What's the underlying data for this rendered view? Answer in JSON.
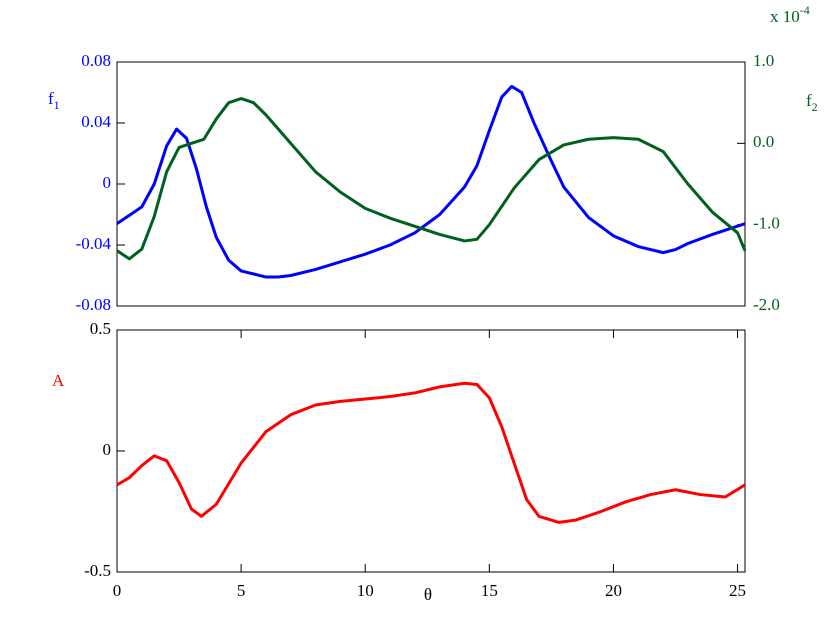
{
  "chart_data": [
    {
      "type": "line",
      "ylabel": "f",
      "ylabel_subscript": "1",
      "y2label": "f",
      "y2label_subscript": "2",
      "y2_multiplier": "x 10",
      "y2_multiplier_exponent": "-4",
      "xlim": [
        0,
        25.3
      ],
      "ylim": [
        -0.08,
        0.08
      ],
      "yticks": [
        0.08,
        0.04,
        0,
        -0.04,
        -0.08
      ],
      "y2lim": [
        -2,
        1
      ],
      "y2ticks": [
        {
          "value": 1,
          "label": "1.0"
        },
        {
          "value": 0,
          "label": "0.0"
        },
        {
          "value": -1,
          "label": "-1.0"
        },
        {
          "value": -2,
          "label": "-2.0"
        }
      ],
      "series": [
        {
          "color": "#0000ff",
          "x": [
            0,
            1,
            1.5,
            2,
            2.4,
            2.8,
            3.2,
            3.6,
            4,
            4.5,
            5,
            6,
            6.5,
            7,
            8,
            9,
            10,
            11,
            12,
            13,
            14,
            14.5,
            15,
            15.5,
            15.9,
            16.3,
            16.8,
            17.5,
            18,
            19,
            20,
            21,
            22,
            22.5,
            23,
            24,
            25.3
          ],
          "values": [
            -0.026,
            -0.015,
            0.0,
            0.025,
            0.036,
            0.03,
            0.01,
            -0.015,
            -0.035,
            -0.05,
            -0.057,
            -0.061,
            -0.061,
            -0.06,
            -0.056,
            -0.051,
            -0.046,
            -0.04,
            -0.032,
            -0.02,
            -0.002,
            0.012,
            0.035,
            0.057,
            0.064,
            0.06,
            0.04,
            0.015,
            -0.002,
            -0.022,
            -0.034,
            -0.041,
            -0.045,
            -0.043,
            -0.039,
            -0.033,
            -0.026
          ]
        },
        {
          "color": "#006020",
          "axis": "y2",
          "x": [
            0,
            0.5,
            1,
            1.5,
            2,
            2.5,
            3,
            3.5,
            4,
            4.5,
            5,
            5.5,
            6,
            7,
            8,
            9,
            10,
            11,
            12,
            13,
            14,
            14.5,
            15,
            16,
            17,
            18,
            19,
            20,
            21,
            22,
            23,
            24,
            25,
            25.3
          ],
          "values": [
            -1.32,
            -1.42,
            -1.3,
            -0.9,
            -0.35,
            -0.05,
            0.0,
            0.05,
            0.3,
            0.5,
            0.55,
            0.5,
            0.35,
            0.0,
            -0.35,
            -0.6,
            -0.8,
            -0.92,
            -1.02,
            -1.12,
            -1.2,
            -1.18,
            -1.0,
            -0.55,
            -0.2,
            -0.02,
            0.05,
            0.07,
            0.05,
            -0.1,
            -0.5,
            -0.85,
            -1.1,
            -1.32
          ]
        }
      ]
    },
    {
      "type": "line",
      "ylabel": "A",
      "xlabel": "θ",
      "xlim": [
        0,
        25.3
      ],
      "xticks": [
        0,
        5,
        10,
        15,
        20,
        25
      ],
      "ylim": [
        -0.5,
        0.5
      ],
      "yticks": [
        0.5,
        0,
        -0.5
      ],
      "series": [
        {
          "color": "#ff0000",
          "x": [
            0,
            0.5,
            1,
            1.5,
            2,
            2.5,
            3,
            3.4,
            4,
            5,
            6,
            7,
            8,
            9,
            10,
            11,
            12,
            13,
            14,
            14.5,
            15,
            15.5,
            16,
            16.5,
            17,
            17.8,
            18.5,
            19.5,
            20.5,
            21.5,
            22.5,
            23.5,
            24.5,
            25.3
          ],
          "values": [
            -0.14,
            -0.11,
            -0.06,
            -0.02,
            -0.04,
            -0.13,
            -0.24,
            -0.27,
            -0.22,
            -0.05,
            0.08,
            0.15,
            0.19,
            0.205,
            0.215,
            0.225,
            0.24,
            0.265,
            0.28,
            0.275,
            0.22,
            0.1,
            -0.05,
            -0.2,
            -0.27,
            -0.295,
            -0.285,
            -0.25,
            -0.21,
            -0.18,
            -0.16,
            -0.18,
            -0.19,
            -0.14
          ]
        }
      ]
    }
  ]
}
